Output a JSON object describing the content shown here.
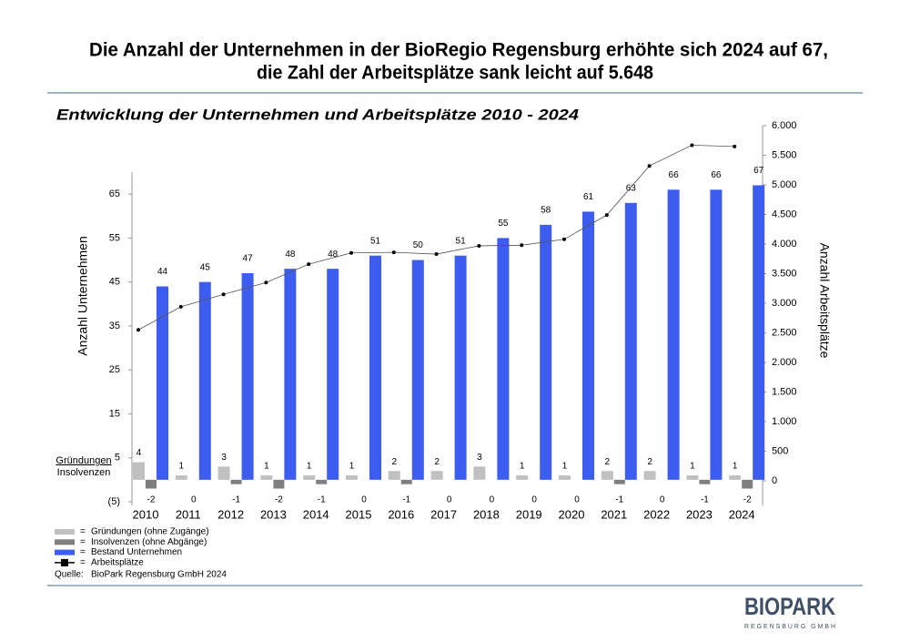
{
  "chart_data": {
    "type": "bar",
    "title": [
      "Die Anzahl der Unternehmen in der BioRegio Regensburg erhöhte sich 2024 auf 67,",
      "die Zahl der Arbeitsplätze sank leicht auf 5.648"
    ],
    "subtitle": "Entwicklung der Unternehmen und Arbeitsplätze 2010 - 2024",
    "y_label": "Anzahl Unternehmen",
    "y2_label": "Anzahl Arbeitsplätze",
    "side_labels": [
      "Gründungen",
      "Insolvenzen"
    ],
    "categories": [
      "2010",
      "2011",
      "2012",
      "2013",
      "2014",
      "2015",
      "2016",
      "2017",
      "2018",
      "2019",
      "2020",
      "2021",
      "2022",
      "2023",
      "2024"
    ],
    "series": [
      {
        "name": "Gründungen (ohne Zugänge)",
        "color": "#c0c0c0",
        "values": [
          4,
          1,
          3,
          1,
          1,
          1,
          2,
          2,
          3,
          1,
          1,
          2,
          2,
          1,
          1
        ]
      },
      {
        "name": "Insolvenzen (ohne Abgänge)",
        "color": "#7f7f7f",
        "values": [
          -2,
          0,
          -1,
          -2,
          -1,
          0,
          -1,
          0,
          0,
          0,
          0,
          -1,
          0,
          -1,
          -2
        ]
      },
      {
        "name": "Bestand Unternehmen",
        "color": "#3d5cf0",
        "values": [
          44,
          45,
          47,
          48,
          48,
          51,
          50,
          51,
          55,
          58,
          61,
          63,
          66,
          66,
          67
        ]
      },
      {
        "name": "Arbeitsplätze",
        "color": "#000000",
        "type": "line",
        "axis": "y2",
        "values": [
          2550,
          2940,
          3150,
          3350,
          3660,
          3850,
          3860,
          3830,
          3970,
          3980,
          4080,
          4490,
          5320,
          5670,
          5648
        ]
      }
    ],
    "ylim": [
      -5,
      70
    ],
    "yticks": [
      {
        "value": -5,
        "label": "(5)"
      },
      5,
      15,
      25,
      35,
      45,
      55,
      65
    ],
    "y2lim": [
      0,
      6000
    ],
    "y2ticks": [
      0,
      500,
      {
        "value": 1000,
        "label": "1.000"
      },
      {
        "value": 1500,
        "label": "1.500"
      },
      {
        "value": 2000,
        "label": "2.000"
      },
      {
        "value": 2500,
        "label": "2.500"
      },
      {
        "value": 3000,
        "label": "3.000"
      },
      {
        "value": 3500,
        "label": "3.500"
      },
      {
        "value": 4000,
        "label": "4.000"
      },
      {
        "value": 4500,
        "label": "4.500"
      },
      {
        "value": 5000,
        "label": "5.000"
      },
      {
        "value": 5500,
        "label": "5.500"
      },
      {
        "value": 6000,
        "label": "6.000"
      }
    ],
    "grid": false,
    "legend_separator": "=",
    "source_label": "Quelle:",
    "source": "BioPark Regensburg GmbH 2024"
  },
  "logo": {
    "name": "BIOPARK",
    "tagline": "REGENSBURG GMBH"
  }
}
